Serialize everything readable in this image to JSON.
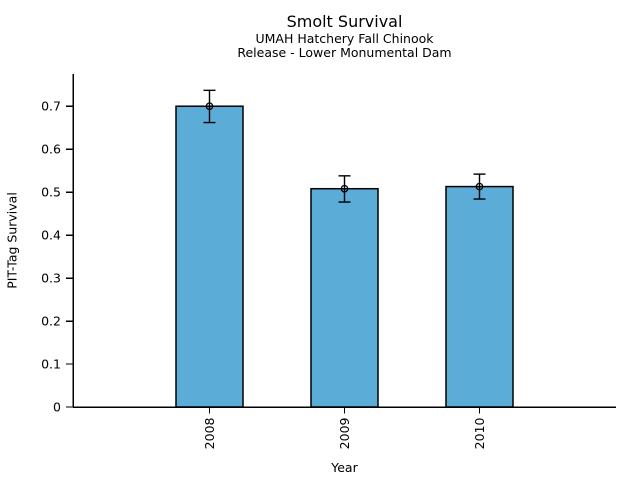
{
  "chart_data": {
    "type": "bar",
    "title": "Smolt Survival",
    "subtitle_lines": [
      "UMAH Hatchery Fall Chinook",
      "Release - Lower Monumental Dam"
    ],
    "xlabel": "Year",
    "ylabel": "PIT-Tag Survival",
    "categories": [
      "2008",
      "2009",
      "2010"
    ],
    "values": [
      0.7,
      0.508,
      0.513
    ],
    "error_bars": {
      "upper": [
        0.737,
        0.538,
        0.542
      ],
      "lower": [
        0.662,
        0.477,
        0.484
      ]
    },
    "ylim": [
      0,
      0.775
    ],
    "yticks": [
      0,
      0.1,
      0.2,
      0.3,
      0.4,
      0.5,
      0.6,
      0.7
    ],
    "ytick_labels": [
      "0",
      "0.1",
      "0.2",
      "0.3",
      "0.4",
      "0.5",
      "0.6",
      "0.7"
    ],
    "grid": false,
    "legend": "none",
    "marker": "open-circle",
    "x_tick_label_rotation": 90,
    "colors": {
      "bar_fill": "#5BACD6",
      "bar_edge": "#000000",
      "error_bar": "#000000",
      "marker_edge": "#000000",
      "axis": "#000000",
      "text": "#000000",
      "background": "#FFFFFF"
    }
  }
}
